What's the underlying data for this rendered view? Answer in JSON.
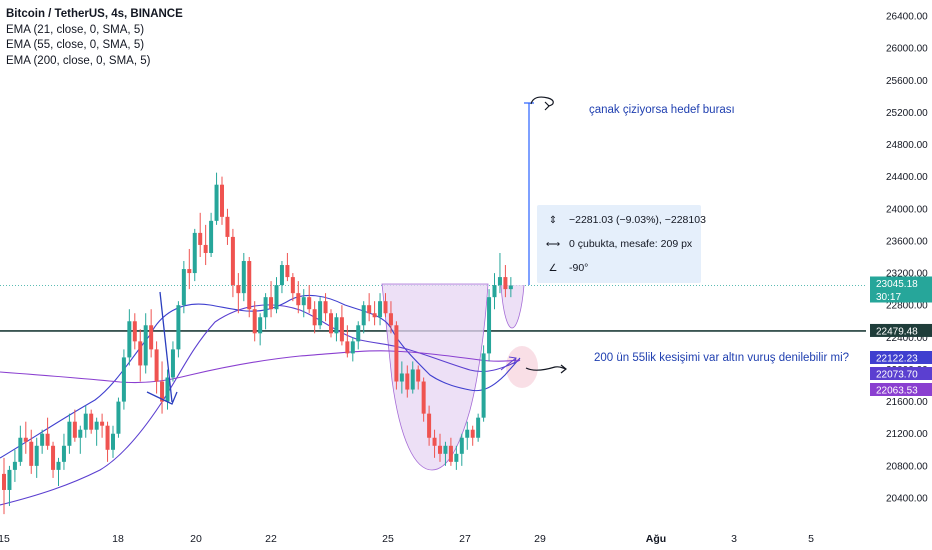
{
  "legend": {
    "title": "Bitcoin / TetherUS, 4s, BINANCE",
    "ema21": "EMA (21, close, 0, SMA, 5)",
    "ema55": "EMA (55, close, 0, SMA, 5)",
    "ema200": "EMA (200, close, 0, SMA, 5)"
  },
  "annotations": {
    "target_note": "çanak çiziyorsa hedef burası",
    "cross_note": "200 ün 55lik kesişimi var altın vuruş denilebilir mi?"
  },
  "measure": {
    "line1": "−2281.03 (−9.03%), −228103",
    "line2": "0 çubukta, mesafe: 209 px",
    "line3": "-90°",
    "icon1": "range-icon",
    "icon2": "bars-distance-icon",
    "icon3": "angle-icon"
  },
  "price_labels": {
    "current_price": "23045.18",
    "countdown": "30:17",
    "horizontal_line": "22479.48",
    "ema21_value": "22122.23",
    "ema55_value": "22073.70",
    "ema200_value": "22063.53"
  },
  "colors": {
    "up": "#26a69a",
    "down": "#ef5350",
    "ema21": "#3f3fcf",
    "ema55": "#5b3fd0",
    "ema200": "#8a3fd0",
    "cup_fill": "#e7d6f3",
    "cup_stroke": "#a56cd6",
    "measure_line": "#2962ff",
    "hline": "#1f3d3a"
  },
  "chart_data": {
    "type": "candlestick",
    "symbol": "Bitcoin / TetherUS, 4s, BINANCE",
    "y_axis_ticks": [
      "20400.00",
      "20800.00",
      "21200.00",
      "21600.00",
      "22000.00",
      "22400.00",
      "22800.00",
      "23200.00",
      "23600.00",
      "24000.00",
      "24400.00",
      "24800.00",
      "25200.00",
      "25600.00",
      "26000.00",
      "26400.00"
    ],
    "x_axis_ticks": [
      "15",
      "18",
      "20",
      "22",
      "25",
      "27",
      "29",
      "Ağu",
      "3",
      "5"
    ],
    "ylim": [
      20100,
      26550
    ],
    "candles": [
      [
        20700,
        20900,
        20200,
        20500
      ],
      [
        20500,
        20800,
        20300,
        20750
      ],
      [
        20750,
        21000,
        20600,
        20850
      ],
      [
        20850,
        21300,
        20800,
        21150
      ],
      [
        21150,
        21350,
        20950,
        21100
      ],
      [
        21100,
        21250,
        20700,
        20800
      ],
      [
        20800,
        21150,
        20650,
        21050
      ],
      [
        21050,
        21250,
        20950,
        21200
      ],
      [
        21200,
        21400,
        21000,
        21050
      ],
      [
        21050,
        21100,
        20650,
        20750
      ],
      [
        20750,
        20900,
        20550,
        20850
      ],
      [
        20850,
        21200,
        20750,
        21050
      ],
      [
        21050,
        21450,
        20950,
        21350
      ],
      [
        21350,
        21500,
        21100,
        21150
      ],
      [
        21150,
        21300,
        20950,
        21250
      ],
      [
        21250,
        21550,
        21150,
        21450
      ],
      [
        21450,
        21500,
        21200,
        21250
      ],
      [
        21250,
        21400,
        21050,
        21350
      ],
      [
        21350,
        21450,
        21150,
        21300
      ],
      [
        21300,
        21350,
        20850,
        21000
      ],
      [
        21000,
        21300,
        20900,
        21200
      ],
      [
        21200,
        21650,
        21150,
        21600
      ],
      [
        21600,
        22250,
        21500,
        22150
      ],
      [
        22150,
        22750,
        22050,
        22600
      ],
      [
        22600,
        22700,
        22250,
        22350
      ],
      [
        22350,
        22500,
        21850,
        22050
      ],
      [
        22050,
        22700,
        21950,
        22550
      ],
      [
        22550,
        22750,
        22150,
        22250
      ],
      [
        22250,
        22350,
        21700,
        21850
      ],
      [
        21850,
        22100,
        21450,
        21600
      ],
      [
        21600,
        22000,
        21500,
        21900
      ],
      [
        21900,
        22350,
        21850,
        22250
      ],
      [
        22250,
        22850,
        22150,
        22800
      ],
      [
        22800,
        23350,
        22700,
        23250
      ],
      [
        23250,
        23500,
        23000,
        23200
      ],
      [
        23200,
        23750,
        23100,
        23700
      ],
      [
        23700,
        23950,
        23400,
        23550
      ],
      [
        23550,
        23800,
        23300,
        23450
      ],
      [
        23450,
        23950,
        23400,
        23850
      ],
      [
        23850,
        24450,
        23800,
        24300
      ],
      [
        24300,
        24400,
        23800,
        23900
      ],
      [
        23900,
        24000,
        23550,
        23650
      ],
      [
        23650,
        23750,
        22900,
        23050
      ],
      [
        23050,
        23200,
        22700,
        22950
      ],
      [
        22950,
        23450,
        22850,
        23350
      ],
      [
        23350,
        23400,
        22650,
        22750
      ],
      [
        22750,
        22850,
        22350,
        22450
      ],
      [
        22450,
        22700,
        22300,
        22650
      ],
      [
        22650,
        22950,
        22500,
        22900
      ],
      [
        22900,
        23100,
        22650,
        22750
      ],
      [
        22750,
        23150,
        22700,
        23050
      ],
      [
        23050,
        23350,
        22950,
        23300
      ],
      [
        23300,
        23450,
        23100,
        23150
      ],
      [
        23150,
        23200,
        22850,
        22950
      ],
      [
        22950,
        23100,
        22700,
        22800
      ],
      [
        22800,
        23000,
        22650,
        22900
      ],
      [
        22900,
        23050,
        22700,
        22750
      ],
      [
        22750,
        22850,
        22450,
        22550
      ],
      [
        22550,
        22900,
        22500,
        22850
      ],
      [
        22850,
        22950,
        22600,
        22700
      ],
      [
        22700,
        22750,
        22400,
        22450
      ],
      [
        22450,
        22700,
        22350,
        22650
      ],
      [
        22650,
        22800,
        22300,
        22350
      ],
      [
        22350,
        22550,
        22150,
        22200
      ],
      [
        22200,
        22400,
        22100,
        22350
      ],
      [
        22350,
        22600,
        22250,
        22550
      ],
      [
        22550,
        22850,
        22450,
        22800
      ],
      [
        22800,
        22950,
        22600,
        22700
      ],
      [
        22700,
        22850,
        22550,
        22650
      ],
      [
        22650,
        22950,
        22550,
        22850
      ],
      [
        22850,
        22950,
        22650,
        22700
      ],
      [
        22700,
        22850,
        22450,
        22550
      ],
      [
        22550,
        22600,
        21750,
        21850
      ],
      [
        21850,
        22100,
        21700,
        21950
      ],
      [
        21950,
        22050,
        21650,
        21750
      ],
      [
        21750,
        22100,
        21700,
        22000
      ],
      [
        22000,
        22050,
        21750,
        21850
      ],
      [
        21850,
        21900,
        21350,
        21450
      ],
      [
        21450,
        21550,
        21050,
        21150
      ],
      [
        21150,
        21250,
        20900,
        21050
      ],
      [
        21050,
        21200,
        20850,
        20950
      ],
      [
        20950,
        21100,
        20800,
        21050
      ],
      [
        21050,
        21150,
        20800,
        20850
      ],
      [
        20850,
        21050,
        20750,
        20950
      ],
      [
        20950,
        21200,
        20800,
        21150
      ],
      [
        21150,
        21350,
        21000,
        21250
      ],
      [
        21250,
        21300,
        21050,
        21150
      ],
      [
        21150,
        21450,
        21100,
        21400
      ],
      [
        21400,
        22300,
        21350,
        22200
      ],
      [
        22200,
        23000,
        22100,
        22900
      ],
      [
        22900,
        23200,
        22750,
        23050
      ],
      [
        23050,
        23450,
        22950,
        23150
      ],
      [
        23150,
        23300,
        22900,
        23000
      ],
      [
        23000,
        23150,
        22900,
        23045.18
      ]
    ],
    "emas": [
      {
        "name": "EMA (21, close, 0, SMA, 5)",
        "value": 22122.23
      },
      {
        "name": "EMA (55, close, 0, SMA, 5)",
        "value": 22073.7
      },
      {
        "name": "EMA (200, close, 0, SMA, 5)",
        "value": 22063.53
      }
    ],
    "horizontal_line": 22479.48,
    "current_price": 23045.18,
    "measurement": {
      "price_change": -2281.03,
      "percent": -9.03,
      "bars": 0,
      "distance_px": 209,
      "angle_deg": -90
    },
    "grid": false
  }
}
